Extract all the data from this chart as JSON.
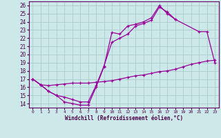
{
  "xlabel": "Windchill (Refroidissement éolien,°C)",
  "xlim": [
    -0.5,
    23.5
  ],
  "ylim": [
    13.5,
    26.5
  ],
  "xticks": [
    0,
    1,
    2,
    3,
    4,
    5,
    6,
    7,
    8,
    9,
    10,
    11,
    12,
    13,
    14,
    15,
    16,
    17,
    18,
    19,
    20,
    21,
    22,
    23
  ],
  "yticks": [
    14,
    15,
    16,
    17,
    18,
    19,
    20,
    21,
    22,
    23,
    24,
    25,
    26
  ],
  "bg_color": "#cce8e8",
  "line_color": "#990099",
  "grid_color": "#aacccc",
  "line1_x": [
    0,
    1,
    2,
    3,
    4,
    5,
    6,
    7,
    8,
    9,
    10,
    11,
    12,
    13,
    14,
    15,
    16,
    17,
    18,
    21,
    22,
    23
  ],
  "line1_y": [
    17.0,
    16.3,
    15.5,
    15.0,
    14.2,
    14.0,
    13.8,
    13.8,
    16.0,
    18.5,
    22.7,
    22.5,
    23.5,
    23.7,
    24.0,
    24.5,
    26.0,
    25.0,
    24.3,
    22.8,
    22.8,
    19.0
  ],
  "line2_x": [
    0,
    1,
    2,
    3,
    4,
    5,
    6,
    7,
    8,
    9,
    10,
    11,
    12,
    13,
    14,
    15,
    16,
    17,
    18
  ],
  "line2_y": [
    17.0,
    16.3,
    15.5,
    15.0,
    14.8,
    14.5,
    14.2,
    14.2,
    16.2,
    18.6,
    21.5,
    22.0,
    22.5,
    23.5,
    23.8,
    24.2,
    25.8,
    25.2,
    24.3
  ],
  "line3_x": [
    0,
    1,
    2,
    3,
    4,
    5,
    6,
    7,
    8,
    9,
    10,
    11,
    12,
    13,
    14,
    15,
    16,
    17,
    18,
    19,
    20,
    21,
    22,
    23
  ],
  "line3_y": [
    17.0,
    16.3,
    16.2,
    16.3,
    16.4,
    16.5,
    16.5,
    16.5,
    16.6,
    16.7,
    16.8,
    17.0,
    17.2,
    17.4,
    17.5,
    17.7,
    17.9,
    18.0,
    18.2,
    18.5,
    18.8,
    19.0,
    19.2,
    19.3
  ]
}
